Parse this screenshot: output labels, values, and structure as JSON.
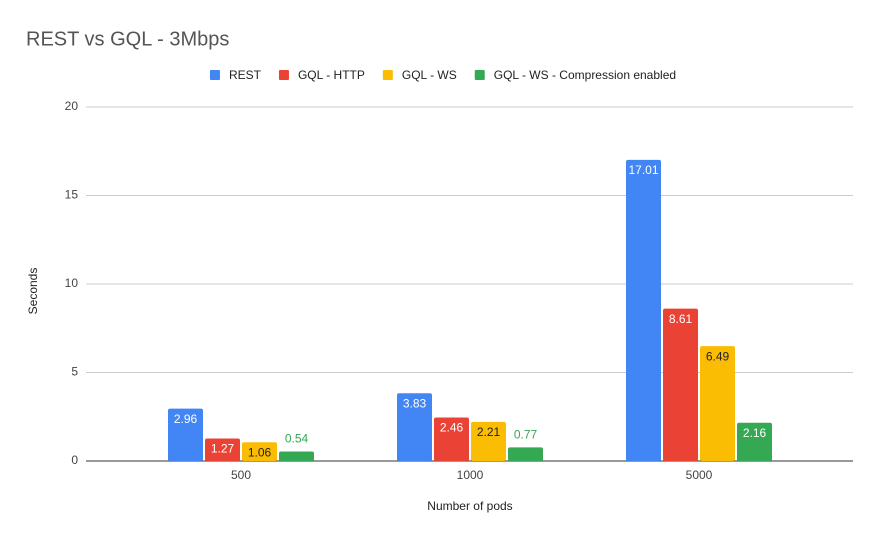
{
  "chart_data": {
    "type": "bar",
    "title": "REST vs GQL - 3Mbps",
    "x_label": "Number of pods",
    "y_label": "Seconds",
    "categories": [
      "500",
      "1000",
      "5000"
    ],
    "series": [
      {
        "name": "REST",
        "color": "#4285f4",
        "values": [
          2.96,
          3.83,
          17.01
        ]
      },
      {
        "name": "GQL - HTTP",
        "color": "#ea4335",
        "values": [
          1.27,
          2.46,
          8.61
        ]
      },
      {
        "name": "GQL - WS",
        "color": "#fbbc04",
        "values": [
          1.06,
          2.21,
          6.49
        ]
      },
      {
        "name": "GQL - WS - Compression enabled",
        "color": "#34a853",
        "values": [
          0.54,
          0.77,
          2.16
        ]
      }
    ],
    "ylim": [
      0,
      20
    ],
    "yticks": [
      0,
      5,
      10,
      15,
      20
    ],
    "grid": true,
    "legend": "top"
  }
}
